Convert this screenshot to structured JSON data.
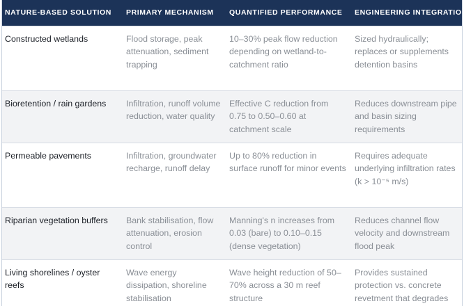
{
  "headers": [
    "NATURE-BASED SOLUTION",
    "PRIMARY MECHANISM",
    "QUANTIFIED PERFORMANCE",
    "ENGINEERING INTEGRATION"
  ],
  "rows": [
    {
      "solution": "Constructed wetlands",
      "mechanism": "Flood storage, peak attenuation, sediment trapping",
      "performance": "10–30% peak flow reduction depending on wetland-to-catchment ratio",
      "integration": "Sized hydraulically; replaces or supplements detention basins"
    },
    {
      "solution": "Bioretention / rain gardens",
      "mechanism": "Infiltration, runoff volume reduction, water quality",
      "performance": "Effective C reduction from 0.75 to 0.50–0.60 at catchment scale",
      "integration": "Reduces downstream pipe and basin sizing requirements"
    },
    {
      "solution": "Permeable pavements",
      "mechanism": "Infiltration, groundwater recharge, runoff delay",
      "performance": "Up to 80% reduction in surface runoff for minor events",
      "integration": "Requires adequate underlying infiltration rates (k > 10⁻⁵ m/s)"
    },
    {
      "solution": "Riparian vegetation buffers",
      "mechanism": "Bank stabilisation, flow attenuation, erosion control",
      "performance": "Manning's n increases from 0.03 (bare) to 0.10–0.15 (dense vegetation)",
      "integration": "Reduces channel flow velocity and downstream flood peak"
    },
    {
      "solution": "Living shorelines / oyster reefs",
      "mechanism": "Wave energy dissipation, shoreline stabilisation",
      "performance": "Wave height reduction of 50–70% across a 30 m reef structure",
      "integration": "Provides sustained protection vs. concrete revetment that degrades"
    }
  ]
}
